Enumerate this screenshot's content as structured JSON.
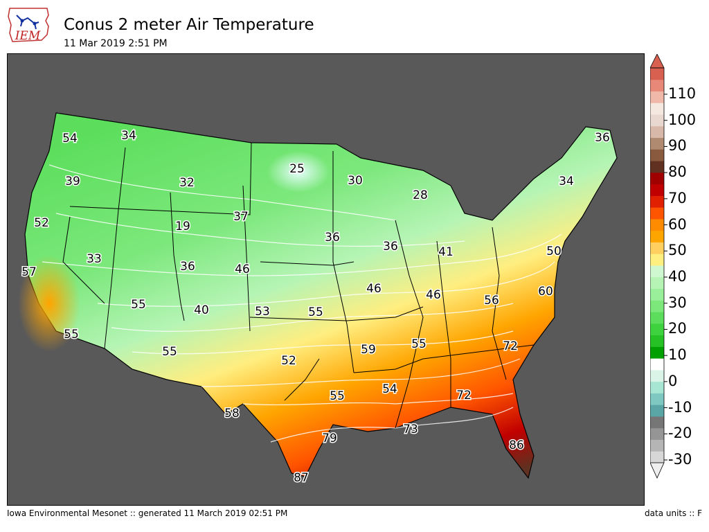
{
  "header": {
    "logo_text": "IEM",
    "title": "Conus 2 meter Air Temperature",
    "subtitle": "11 Mar 2019 2:51 PM"
  },
  "map": {
    "background_color": "#595959",
    "labels": [
      "54",
      "34",
      "25",
      "30",
      "36",
      "39",
      "32",
      "28",
      "34",
      "52",
      "19",
      "37",
      "36",
      "36",
      "41",
      "33",
      "36",
      "46",
      "50",
      "57",
      "46",
      "46",
      "60",
      "55",
      "40",
      "53",
      "55",
      "56",
      "55",
      "59",
      "55",
      "72",
      "55",
      "52",
      "54",
      "72",
      "55",
      "58",
      "73",
      "79",
      "86",
      "87"
    ]
  },
  "colorbar": {
    "ticks": [
      "110",
      "100",
      "90",
      "80",
      "70",
      "60",
      "50",
      "40",
      "30",
      "20",
      "10",
      "0",
      "-10",
      "-20",
      "-30"
    ],
    "units": "F",
    "colors": [
      "#d7d7d7",
      "#b5b5b5",
      "#959595",
      "#767676",
      "#5aa5a5",
      "#7fc8c2",
      "#a6e6d2",
      "#daf5e8",
      "#ffffff",
      "#00a000",
      "#25c125",
      "#3fd23f",
      "#5cde5c",
      "#7ce87c",
      "#9af09a",
      "#b5f4b5",
      "#d0f8d0",
      "#ffee80",
      "#ffd060",
      "#ffa500",
      "#ff8c00",
      "#ff5500",
      "#e02000",
      "#c00000",
      "#a00000",
      "#603020",
      "#8a5a3e",
      "#b08a70",
      "#d8b8a8",
      "#e8d8d0",
      "#f5e8e0",
      "#f0b8a8",
      "#e88878",
      "#d86050"
    ]
  },
  "footer": {
    "left": "Iowa Environmental Mesonet :: generated 11 March 2019 02:51 PM",
    "right": "data units :: F"
  }
}
